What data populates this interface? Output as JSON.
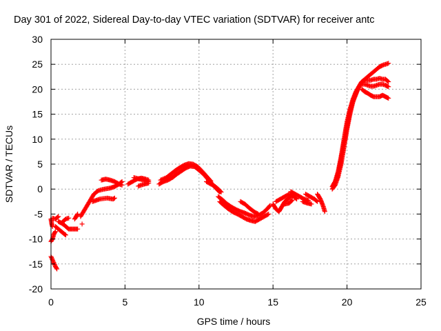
{
  "chart_data": {
    "type": "scatter",
    "title": "Day 301 of 2022, Sidereal Day-to-day VTEC variation (SDTVAR) for receiver antc",
    "xlabel": "GPS time / hours",
    "ylabel": "SDTVAR / TECUs",
    "xlim": [
      0,
      25
    ],
    "ylim": [
      -20,
      30
    ],
    "xticks": [
      "0",
      "5",
      "10",
      "15",
      "20",
      "25"
    ],
    "yticks": [
      "-20",
      "-15",
      "-10",
      "-5",
      "0",
      "5",
      "10",
      "15",
      "20",
      "25",
      "30"
    ],
    "grid": true,
    "marker": "+",
    "color": "#ff0000",
    "series": [
      {
        "name": "SDTVAR",
        "segments": [
          [
            [
              0.0,
              -10.5
            ],
            [
              0.1,
              -10.0
            ],
            [
              0.2,
              -9.0
            ],
            [
              0.3,
              -8.5
            ]
          ],
          [
            [
              0.0,
              -13.5
            ],
            [
              0.15,
              -14.5
            ],
            [
              0.3,
              -15.5
            ],
            [
              0.4,
              -16.0
            ]
          ],
          [
            [
              0.0,
              -6.0
            ],
            [
              0.05,
              -7.0
            ],
            [
              0.1,
              -7.5
            ]
          ],
          [
            [
              0.1,
              -5.8
            ],
            [
              0.3,
              -6.0
            ],
            [
              0.5,
              -5.5
            ]
          ],
          [
            [
              0.3,
              -7.5
            ],
            [
              0.5,
              -8.0
            ],
            [
              0.7,
              -8.5
            ],
            [
              0.9,
              -9.0
            ],
            [
              1.0,
              -9.2
            ]
          ],
          [
            [
              0.5,
              -6.5
            ],
            [
              0.7,
              -6.8
            ],
            [
              0.9,
              -7.2
            ],
            [
              1.0,
              -7.5
            ],
            [
              1.2,
              -8.0
            ],
            [
              1.5,
              -8.0
            ],
            [
              1.8,
              -8.0
            ]
          ],
          [
            [
              0.8,
              -6.5
            ],
            [
              1.0,
              -6.0
            ],
            [
              1.2,
              -5.8
            ]
          ],
          [
            [
              1.6,
              -6.0
            ],
            [
              1.7,
              -5.5
            ],
            [
              1.8,
              -5.0
            ]
          ],
          [
            [
              2.1,
              -7.0
            ]
          ],
          [
            [
              2.0,
              -5.5
            ],
            [
              2.3,
              -4.0
            ],
            [
              2.6,
              -2.5
            ],
            [
              2.9,
              -1.0
            ],
            [
              3.2,
              -0.3
            ],
            [
              3.6,
              0.0
            ],
            [
              4.0,
              0.2
            ],
            [
              4.3,
              0.5
            ],
            [
              4.6,
              1.0
            ],
            [
              4.8,
              1.5
            ]
          ],
          [
            [
              3.4,
              1.8
            ],
            [
              3.7,
              2.0
            ],
            [
              4.0,
              1.8
            ],
            [
              4.3,
              1.5
            ],
            [
              4.6,
              1.0
            ],
            [
              4.8,
              0.8
            ]
          ],
          [
            [
              2.8,
              -2.5
            ],
            [
              3.3,
              -2.0
            ],
            [
              3.8,
              -1.8
            ],
            [
              4.2,
              -2.0
            ],
            [
              4.3,
              -1.8
            ]
          ],
          [
            [
              5.2,
              1.0
            ],
            [
              5.5,
              1.5
            ],
            [
              5.8,
              2.0
            ],
            [
              6.1,
              2.2
            ],
            [
              6.4,
              2.0
            ],
            [
              6.6,
              1.8
            ]
          ],
          [
            [
              5.6,
              2.3
            ],
            [
              6.0,
              2.0
            ],
            [
              6.3,
              1.8
            ],
            [
              6.6,
              1.5
            ]
          ],
          [
            [
              5.9,
              0.6
            ],
            [
              6.3,
              1.0
            ],
            [
              6.6,
              1.2
            ]
          ],
          [
            [
              7.3,
              1.0
            ],
            [
              7.6,
              1.5
            ],
            [
              7.9,
              1.8
            ],
            [
              8.2,
              2.3
            ],
            [
              8.5,
              3.0
            ],
            [
              8.8,
              3.6
            ],
            [
              9.1,
              4.2
            ],
            [
              9.4,
              4.6
            ],
            [
              9.7,
              4.5
            ],
            [
              10.0,
              3.8
            ],
            [
              10.3,
              3.0
            ],
            [
              10.6,
              2.0
            ],
            [
              10.9,
              1.0
            ],
            [
              11.2,
              0.0
            ],
            [
              11.4,
              -0.6
            ]
          ],
          [
            [
              7.4,
              1.8
            ],
            [
              7.8,
              2.3
            ],
            [
              8.1,
              3.0
            ],
            [
              8.4,
              3.7
            ],
            [
              8.7,
              4.3
            ],
            [
              9.0,
              4.8
            ],
            [
              9.3,
              5.1
            ],
            [
              9.6,
              5.0
            ],
            [
              9.9,
              4.5
            ],
            [
              10.2,
              3.6
            ],
            [
              10.5,
              2.6
            ],
            [
              10.8,
              1.6
            ]
          ],
          [
            [
              10.5,
              1.5
            ],
            [
              10.8,
              1.0
            ],
            [
              11.1,
              0.5
            ],
            [
              11.3,
              0.0
            ],
            [
              11.5,
              -0.6
            ]
          ],
          [
            [
              11.3,
              -1.5
            ],
            [
              11.6,
              -2.2
            ],
            [
              11.9,
              -3.0
            ],
            [
              12.2,
              -3.6
            ],
            [
              12.5,
              -4.1
            ],
            [
              12.8,
              -4.5
            ],
            [
              13.1,
              -4.8
            ],
            [
              13.4,
              -5.2
            ],
            [
              13.7,
              -5.5
            ],
            [
              14.0,
              -5.3
            ],
            [
              14.3,
              -4.8
            ],
            [
              14.6,
              -4.0
            ],
            [
              14.8,
              -3.3
            ]
          ],
          [
            [
              11.4,
              -2.5
            ],
            [
              11.7,
              -3.3
            ],
            [
              12.0,
              -4.0
            ],
            [
              12.3,
              -4.6
            ],
            [
              12.6,
              -5.0
            ],
            [
              12.9,
              -5.5
            ],
            [
              13.2,
              -6.0
            ],
            [
              13.5,
              -6.3
            ],
            [
              13.8,
              -6.5
            ],
            [
              14.1,
              -6.0
            ],
            [
              14.4,
              -5.5
            ],
            [
              14.7,
              -5.0
            ]
          ],
          [
            [
              12.8,
              -2.5
            ],
            [
              13.1,
              -3.0
            ],
            [
              13.4,
              -3.8
            ],
            [
              13.7,
              -4.5
            ],
            [
              14.0,
              -5.0
            ]
          ],
          [
            [
              15.0,
              -3.0
            ],
            [
              15.2,
              -4.0
            ],
            [
              15.4,
              -4.5
            ],
            [
              15.6,
              -3.5
            ],
            [
              15.8,
              -2.5
            ],
            [
              16.0,
              -2.0
            ],
            [
              16.2,
              -1.5
            ]
          ],
          [
            [
              15.2,
              -2.5
            ],
            [
              15.5,
              -2.0
            ],
            [
              15.8,
              -1.5
            ],
            [
              16.1,
              -1.0
            ],
            [
              16.4,
              -1.5
            ],
            [
              16.6,
              -2.0
            ]
          ],
          [
            [
              15.8,
              -3.0
            ],
            [
              16.1,
              -2.8
            ],
            [
              16.3,
              -2.2
            ]
          ],
          [
            [
              16.2,
              -0.5
            ],
            [
              16.5,
              -1.0
            ],
            [
              16.8,
              -1.5
            ],
            [
              17.1,
              -2.0
            ],
            [
              17.4,
              -2.3
            ]
          ],
          [
            [
              17.2,
              -1.0
            ],
            [
              17.5,
              -1.5
            ],
            [
              17.8,
              -2.0
            ],
            [
              18.0,
              -2.5
            ]
          ],
          [
            [
              17.0,
              -2.5
            ],
            [
              17.3,
              -2.8
            ],
            [
              17.6,
              -3.0
            ]
          ],
          [
            [
              18.0,
              -1.0
            ],
            [
              18.2,
              -2.0
            ],
            [
              18.4,
              -3.5
            ],
            [
              18.5,
              -4.5
            ]
          ],
          [
            [
              19.0,
              0.5
            ],
            [
              19.2,
              1.5
            ],
            [
              19.4,
              3.5
            ],
            [
              19.6,
              6.5
            ],
            [
              19.8,
              10.0
            ],
            [
              20.0,
              13.5
            ],
            [
              20.2,
              16.0
            ],
            [
              20.4,
              18.0
            ],
            [
              20.6,
              19.5
            ],
            [
              20.8,
              20.5
            ],
            [
              21.0,
              21.5
            ],
            [
              21.2,
              22.0
            ],
            [
              21.4,
              22.5
            ],
            [
              21.6,
              23.0
            ],
            [
              21.8,
              23.5
            ],
            [
              22.0,
              24.0
            ],
            [
              22.2,
              24.5
            ],
            [
              22.4,
              24.8
            ],
            [
              22.6,
              25.0
            ],
            [
              22.8,
              25.2
            ]
          ],
          [
            [
              19.0,
              0.0
            ],
            [
              19.2,
              0.8
            ],
            [
              19.4,
              2.5
            ],
            [
              19.6,
              5.0
            ],
            [
              19.8,
              8.5
            ],
            [
              20.0,
              12.0
            ],
            [
              20.2,
              15.0
            ],
            [
              20.4,
              17.5
            ],
            [
              20.6,
              19.0
            ],
            [
              20.8,
              20.5
            ],
            [
              21.0,
              21.5
            ],
            [
              21.2,
              21.8
            ],
            [
              21.4,
              21.8
            ],
            [
              21.6,
              21.8
            ],
            [
              21.8,
              22.0
            ],
            [
              22.0,
              22.0
            ],
            [
              22.2,
              22.2
            ],
            [
              22.4,
              22.0
            ],
            [
              22.6,
              22.0
            ],
            [
              22.8,
              21.5
            ]
          ],
          [
            [
              21.0,
              21.0
            ],
            [
              21.2,
              21.0
            ],
            [
              21.4,
              20.8
            ],
            [
              21.6,
              20.6
            ],
            [
              21.8,
              20.6
            ],
            [
              22.0,
              20.8
            ],
            [
              22.2,
              21.0
            ],
            [
              22.4,
              21.0
            ],
            [
              22.6,
              20.8
            ],
            [
              22.8,
              20.5
            ]
          ],
          [
            [
              21.0,
              20.0
            ],
            [
              21.2,
              19.5
            ],
            [
              21.4,
              19.2
            ],
            [
              21.6,
              18.8
            ],
            [
              21.8,
              18.5
            ],
            [
              22.0,
              18.5
            ],
            [
              22.2,
              18.5
            ],
            [
              22.4,
              18.8
            ],
            [
              22.6,
              18.5
            ],
            [
              22.8,
              18.2
            ]
          ],
          [
            [
              19.1,
              1.0
            ],
            [
              19.3,
              2.0
            ],
            [
              19.5,
              4.5
            ],
            [
              19.7,
              7.5
            ],
            [
              19.9,
              11.0
            ],
            [
              20.1,
              14.0
            ],
            [
              20.3,
              16.5
            ],
            [
              20.5,
              18.5
            ],
            [
              20.7,
              19.8
            ],
            [
              20.9,
              21.0
            ]
          ]
        ]
      }
    ]
  }
}
